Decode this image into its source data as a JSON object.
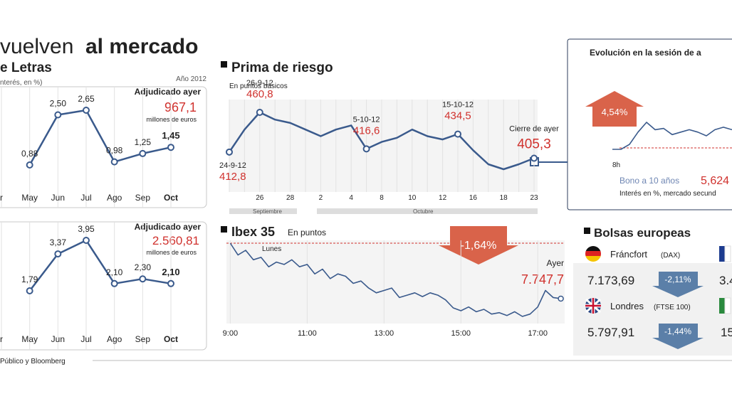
{
  "title": {
    "light": "vuelven",
    "bold": "al mercado"
  },
  "section": {
    "title": "e Letras",
    "subtitle": "nterés, en %)"
  },
  "chart_data": [
    {
      "type": "line",
      "note": "Año 2012",
      "awarded_label": "Adjudicado ayer",
      "awarded_value": "967,1",
      "awarded_unit": "millones de euros",
      "categories": [
        "r",
        "May",
        "Jun",
        "Jul",
        "Ago",
        "Sep",
        "Oct"
      ],
      "values": [
        null,
        0.88,
        2.5,
        2.65,
        0.98,
        1.25,
        1.45
      ],
      "value_labels": [
        null,
        "0,88",
        "2,50",
        "2,65",
        "0,98",
        "1,25",
        "1,45"
      ],
      "color": "#3a5a8c"
    },
    {
      "type": "line",
      "awarded_label": "Adjudicado ayer",
      "awarded_value": "2.560,81",
      "awarded_unit": "millones de euros",
      "categories": [
        "r",
        "May",
        "Jun",
        "Jul",
        "Ago",
        "Sep",
        "Oct"
      ],
      "values": [
        null,
        1.79,
        3.37,
        3.95,
        2.1,
        2.3,
        2.1
      ],
      "value_labels": [
        null,
        "1,79",
        "3,37",
        "3,95",
        "2,10",
        "2,30",
        "2,10"
      ],
      "color": "#3a5a8c"
    },
    {
      "type": "line",
      "title": "Prima de riesgo",
      "subtitle": "En puntos básicos",
      "categories": [
        null,
        null,
        "26",
        null,
        "28",
        null,
        "2",
        null,
        "4",
        null,
        "8",
        null,
        "10",
        null,
        "12",
        null,
        "16",
        null,
        "18",
        null,
        "23"
      ],
      "values": [
        412.8,
        440,
        460.8,
        452,
        448,
        440,
        432,
        440,
        445,
        416.6,
        425,
        430,
        440,
        432,
        428,
        434.5,
        415,
        398,
        392,
        398,
        405.3
      ],
      "value_labels": [
        "412,8",
        null,
        "460,8",
        null,
        null,
        null,
        null,
        null,
        null,
        "416,6",
        null,
        null,
        null,
        null,
        null,
        "434,5",
        null,
        null,
        null,
        null,
        "405,3"
      ],
      "point_labels": [
        "24-9-12",
        null,
        "26-9-12",
        null,
        null,
        null,
        null,
        null,
        null,
        "5-10-12",
        null,
        null,
        null,
        null,
        null,
        "15-10-12",
        null,
        null,
        null,
        null,
        "Cierre de ayer"
      ],
      "months": [
        "Septiembre",
        "Octubre"
      ],
      "color": "#3a5a8c"
    },
    {
      "type": "line",
      "title": "Ibex 35",
      "subtitle": "En puntos",
      "annotation": "Lunes",
      "change": "-1,64%",
      "end_label": "Ayer",
      "end_value_label": "7.747,7",
      "x": [
        9,
        9.2,
        9.4,
        9.6,
        9.8,
        10,
        10.2,
        10.4,
        10.6,
        10.8,
        11,
        11.2,
        11.4,
        11.6,
        11.8,
        12,
        12.2,
        12.4,
        12.6,
        12.8,
        13,
        13.2,
        13.4,
        13.6,
        13.8,
        14,
        14.2,
        14.4,
        14.6,
        14.8,
        15,
        15.2,
        15.4,
        15.6,
        15.8,
        16,
        16.2,
        16.4,
        16.6,
        16.8,
        17,
        17.2,
        17.4,
        17.6
      ],
      "values": [
        7865,
        7840,
        7850,
        7830,
        7835,
        7815,
        7825,
        7820,
        7830,
        7815,
        7820,
        7800,
        7810,
        7790,
        7800,
        7795,
        7780,
        7785,
        7770,
        7760,
        7765,
        7770,
        7750,
        7755,
        7760,
        7752,
        7760,
        7755,
        7745,
        7728,
        7722,
        7730,
        7720,
        7725,
        7715,
        7718,
        7712,
        7720,
        7710,
        7715,
        7730,
        7765,
        7750,
        7747.7
      ],
      "xlim": [
        8.9,
        17.7
      ],
      "xticks": [
        {
          "value": 9,
          "label": "9:00"
        },
        {
          "value": 11,
          "label": "11:00"
        },
        {
          "value": 13,
          "label": "13:00"
        },
        {
          "value": 15,
          "label": "15:00"
        },
        {
          "value": 17,
          "label": "17:00"
        }
      ],
      "color": "#3a5a8c"
    },
    {
      "type": "line",
      "title": "Evolución en la sesión de a",
      "change": "4,54%",
      "start_label": "8h",
      "series_label": "Bono a 10 años",
      "series_value": "5,624",
      "subtitle": "Interés en %, mercado secund",
      "values": [
        5.46,
        5.46,
        5.5,
        5.6,
        5.68,
        5.62,
        5.63,
        5.58,
        5.6,
        5.62,
        5.6,
        5.57,
        5.62,
        5.64,
        5.62
      ],
      "color": "#3a5a8c"
    }
  ],
  "markets": {
    "title": "Bolsas europeas",
    "rows": [
      {
        "name": "Fráncfort",
        "index": "(DAX)",
        "value": "7.173,69",
        "change": "-2,11%"
      },
      {
        "name": "Londres",
        "index": "(FTSE 100)",
        "value": "5.797,91",
        "change": "-1,44%"
      }
    ],
    "cut_values": [
      "3.4",
      "15"
    ]
  },
  "source": "Público y Bloomberg"
}
